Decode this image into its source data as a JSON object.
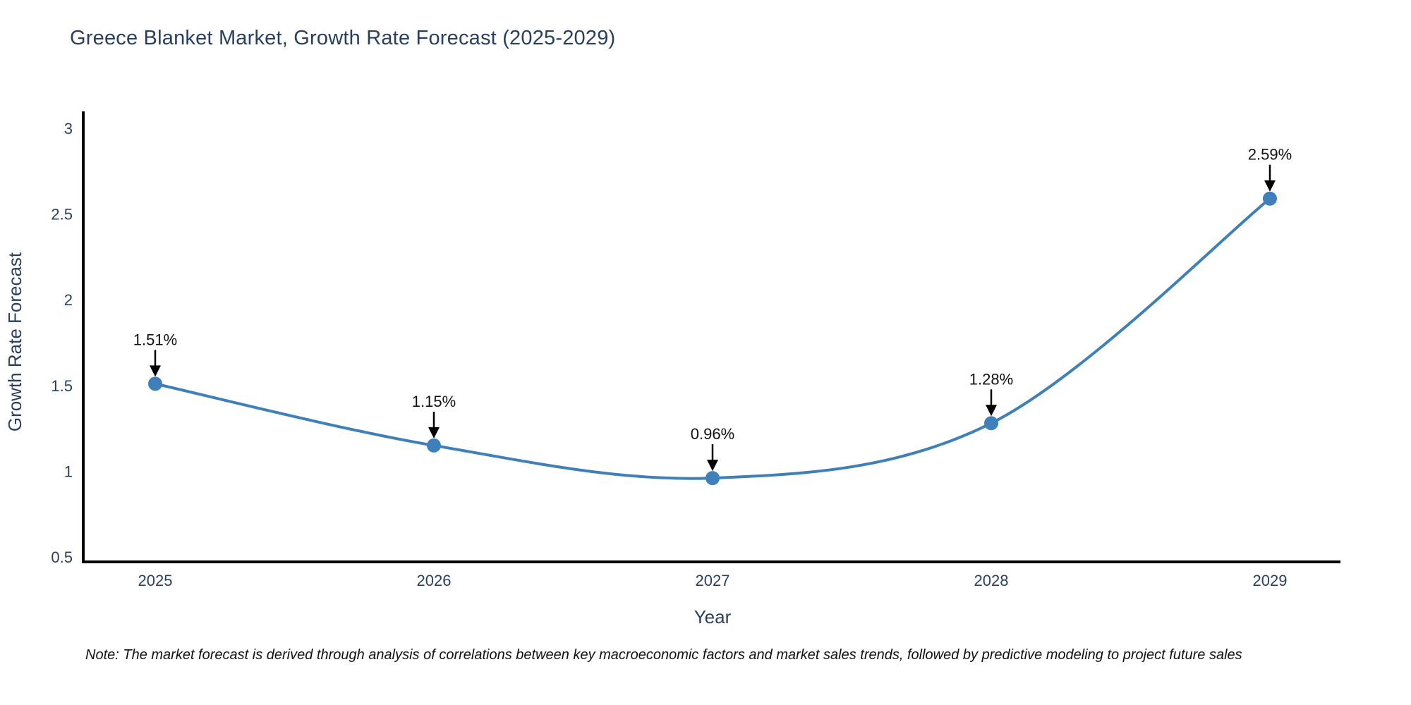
{
  "page": {
    "footnote": "Note: The market forecast is derived through analysis of correlations between key macroeconomic factors and market sales trends, followed by predictive modeling to project future sales"
  },
  "chart_data": {
    "type": "line",
    "title": "Greece Blanket Market, Growth Rate Forecast (2025-2029)",
    "xlabel": "Year",
    "ylabel": "Growth Rate Forecast",
    "x": [
      2025,
      2026,
      2027,
      2028,
      2029
    ],
    "xticks": [
      "2025",
      "2026",
      "2027",
      "2028",
      "2029"
    ],
    "values": [
      1.51,
      1.15,
      0.96,
      1.28,
      2.59
    ],
    "point_labels": [
      "1.51%",
      "1.15%",
      "0.96%",
      "1.28%",
      "2.59%"
    ],
    "ylim": [
      0.5,
      3
    ],
    "yticks": [
      "0.5",
      "1",
      "1.5",
      "2",
      "2.5",
      "3"
    ],
    "line_shape": "spline",
    "grid": false,
    "legend": false,
    "colors": {
      "line": "#3f7fba",
      "marker": "#3f7fba",
      "axis": "#000000",
      "tick_labels": "#2a3f5f",
      "annotation_text": "#111111",
      "annotation_arrow": "#000000",
      "title": "#2a3f5f"
    }
  }
}
